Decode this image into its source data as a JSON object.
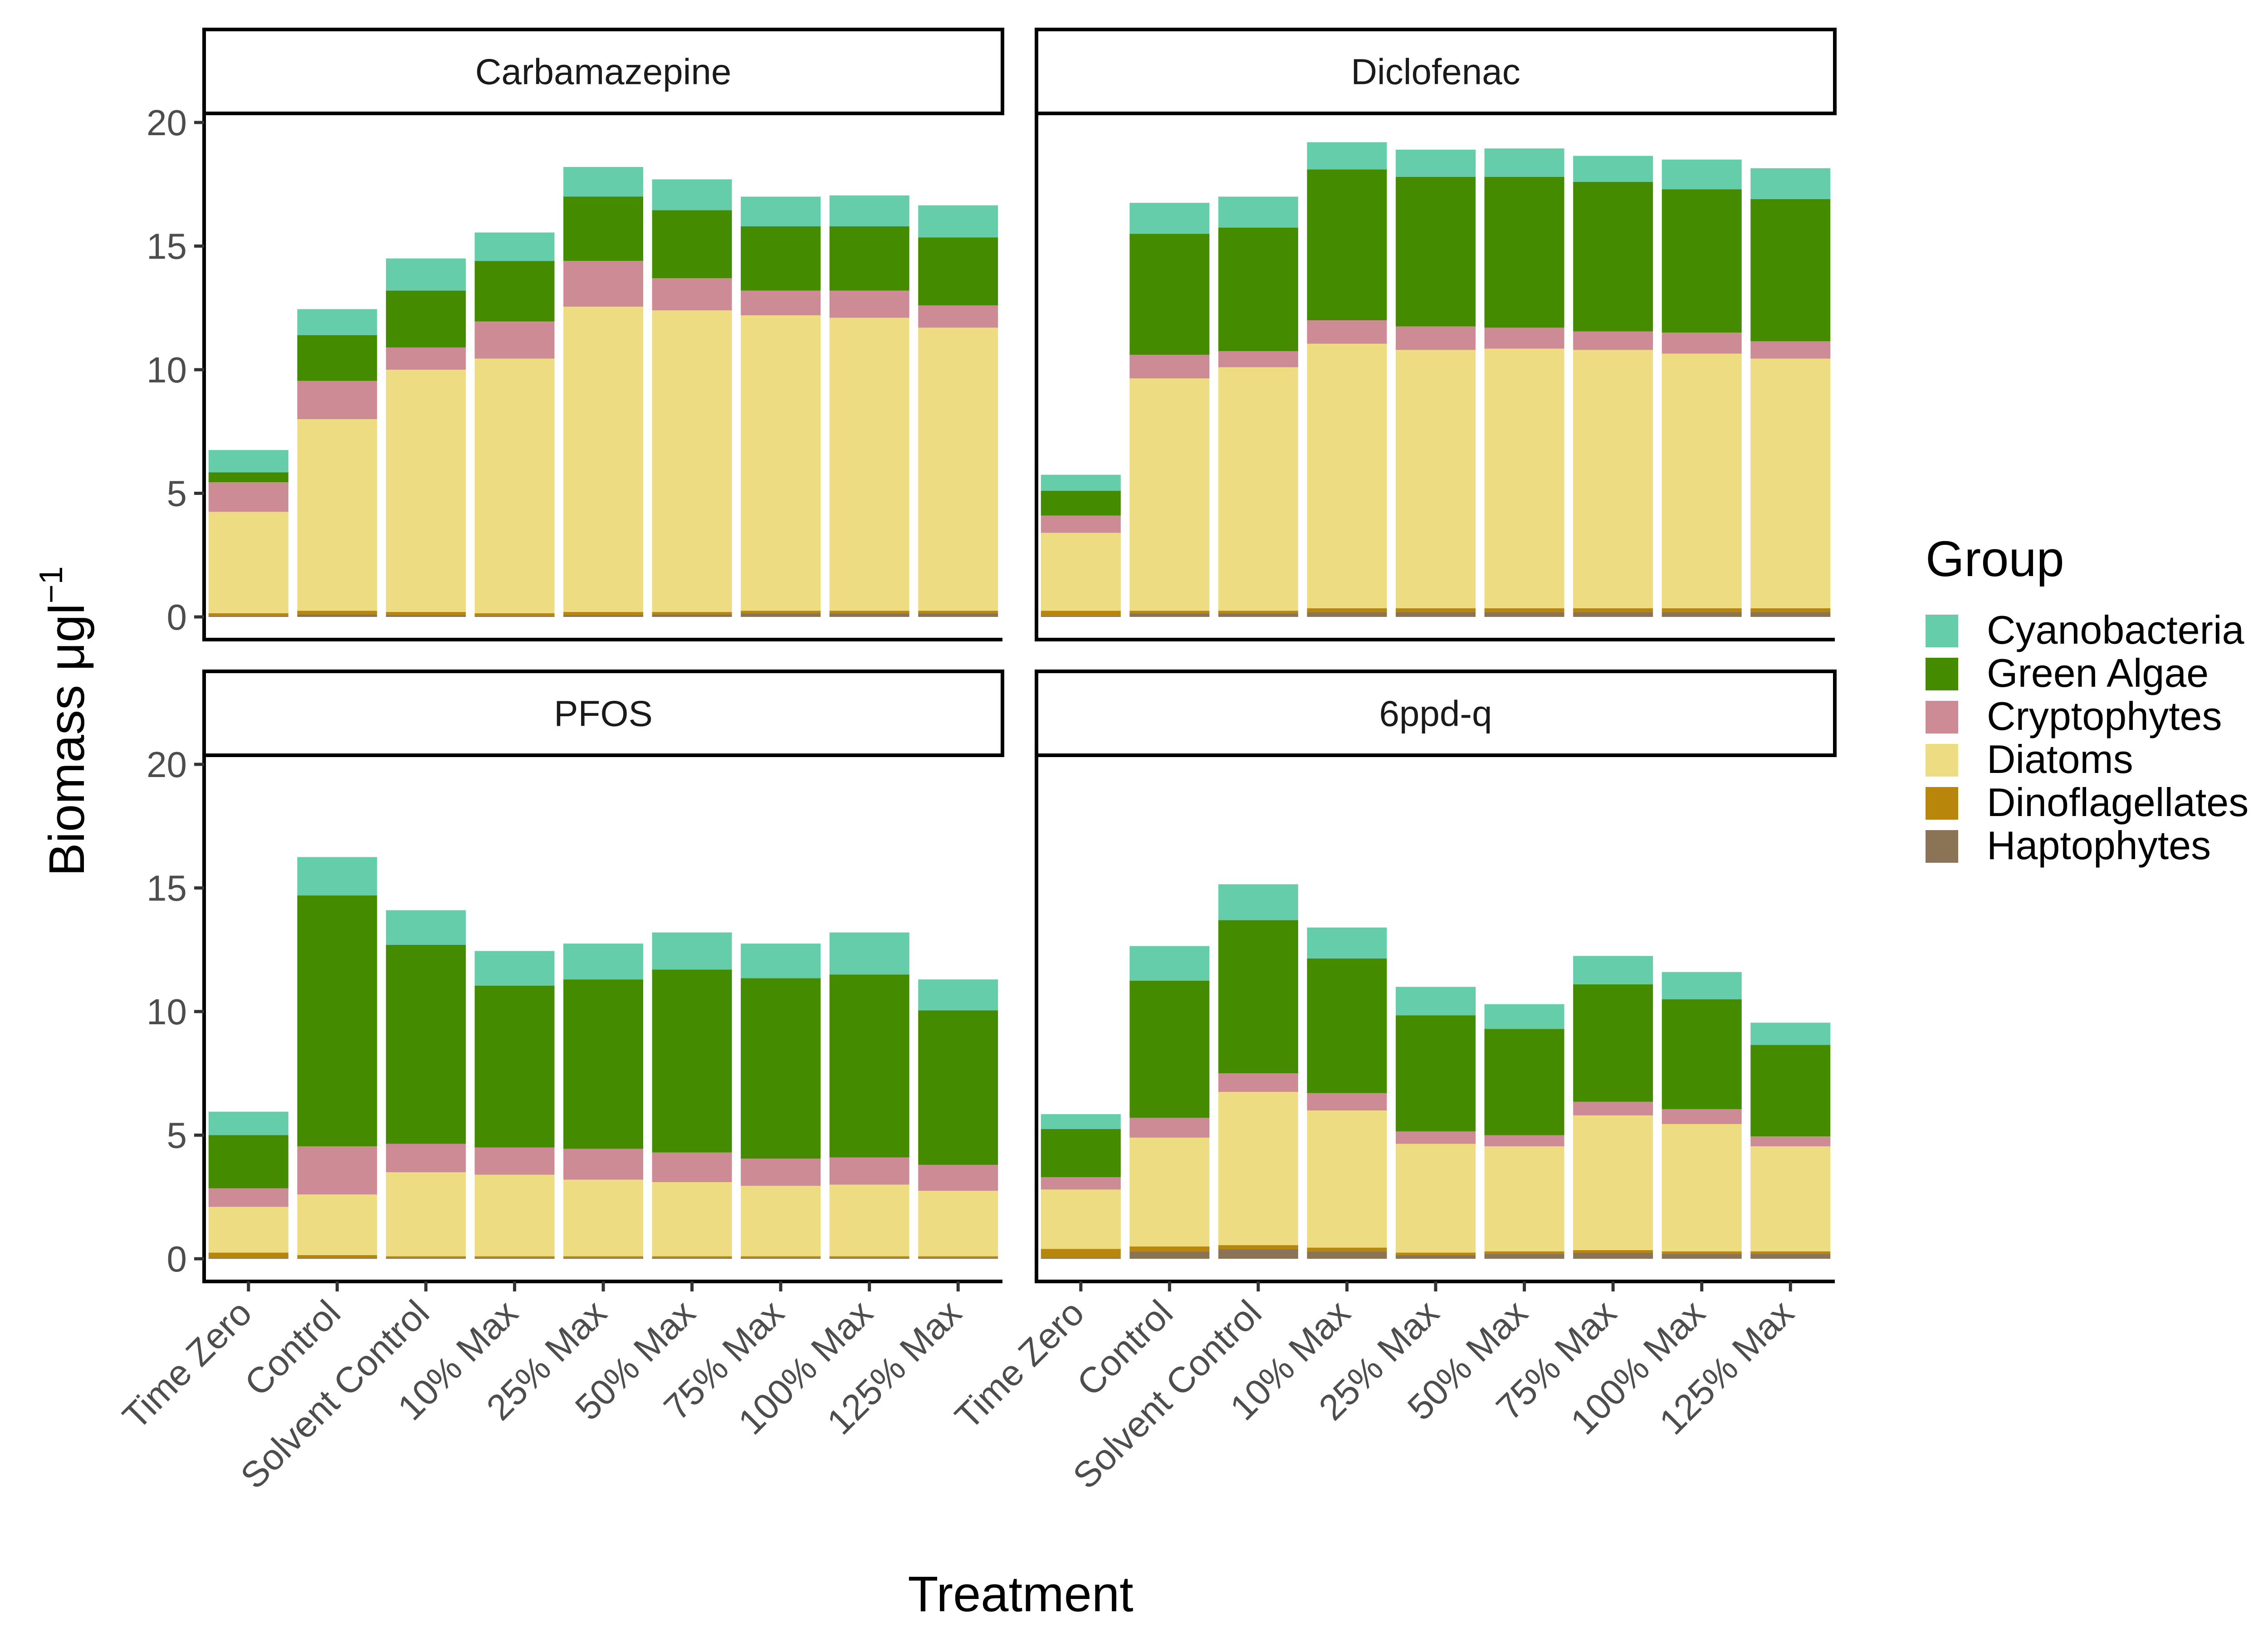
{
  "chart_data": {
    "type": "bar",
    "stacked": true,
    "xlabel": "Treatment",
    "ylabel": "Biomass μgl",
    "ylabel_superscript": "−1",
    "ylim": [
      0,
      20
    ],
    "yticks": [
      "0",
      "5",
      "10",
      "15",
      "20"
    ],
    "categories": [
      "Time Zero",
      "Control",
      "Solvent Control",
      "10% Max",
      "25% Max",
      "50% Max",
      "75% Max",
      "100% Max",
      "125% Max"
    ],
    "legend": {
      "title": "Group",
      "position": "right",
      "items": [
        {
          "name": "Cyanobacteria",
          "color": "#66cdaa"
        },
        {
          "name": "Green Algae",
          "color": "#458b00"
        },
        {
          "name": "Cryptophytes",
          "color": "#cd8c95"
        },
        {
          "name": "Diatoms",
          "color": "#eedc82"
        },
        {
          "name": "Dinoflagellates",
          "color": "#b8860b"
        },
        {
          "name": "Haptophytes",
          "color": "#8b7355"
        }
      ]
    },
    "stack_order": [
      "Haptophytes",
      "Dinoflagellates",
      "Diatoms",
      "Cryptophytes",
      "Green Algae",
      "Cyanobacteria"
    ],
    "panels": [
      {
        "title": "Carbamazepine",
        "series": [
          {
            "name": "Haptophytes",
            "values": [
              0.05,
              0.1,
              0.08,
              0.05,
              0.08,
              0.1,
              0.15,
              0.15,
              0.15
            ]
          },
          {
            "name": "Dinoflagellates",
            "values": [
              0.1,
              0.15,
              0.12,
              0.1,
              0.12,
              0.1,
              0.1,
              0.1,
              0.1
            ]
          },
          {
            "name": "Diatoms",
            "values": [
              4.1,
              7.75,
              9.8,
              10.3,
              12.35,
              12.2,
              11.95,
              11.85,
              11.45
            ]
          },
          {
            "name": "Cryptophytes",
            "values": [
              1.2,
              1.55,
              0.9,
              1.5,
              1.85,
              1.3,
              1.0,
              1.1,
              0.9
            ]
          },
          {
            "name": "Green Algae",
            "values": [
              0.4,
              1.85,
              2.3,
              2.45,
              2.6,
              2.75,
              2.6,
              2.6,
              2.75
            ]
          },
          {
            "name": "Cyanobacteria",
            "values": [
              0.9,
              1.05,
              1.3,
              1.15,
              1.2,
              1.25,
              1.2,
              1.25,
              1.3
            ]
          }
        ]
      },
      {
        "title": "Diclofenac",
        "series": [
          {
            "name": "Haptophytes",
            "values": [
              0.05,
              0.15,
              0.15,
              0.2,
              0.2,
              0.2,
              0.2,
              0.2,
              0.2
            ]
          },
          {
            "name": "Dinoflagellates",
            "values": [
              0.2,
              0.1,
              0.1,
              0.15,
              0.15,
              0.15,
              0.15,
              0.15,
              0.15
            ]
          },
          {
            "name": "Diatoms",
            "values": [
              3.15,
              9.4,
              9.85,
              10.7,
              10.45,
              10.5,
              10.45,
              10.3,
              10.1
            ]
          },
          {
            "name": "Cryptophytes",
            "values": [
              0.7,
              0.95,
              0.65,
              0.95,
              0.95,
              0.85,
              0.75,
              0.85,
              0.7
            ]
          },
          {
            "name": "Green Algae",
            "values": [
              1.0,
              4.9,
              5.0,
              6.1,
              6.05,
              6.1,
              6.05,
              5.8,
              5.75
            ]
          },
          {
            "name": "Cyanobacteria",
            "values": [
              0.65,
              1.25,
              1.25,
              1.1,
              1.1,
              1.15,
              1.05,
              1.2,
              1.25
            ]
          }
        ]
      },
      {
        "title": "PFOS",
        "series": [
          {
            "name": "Haptophytes",
            "values": [
              0.05,
              0.05,
              0.05,
              0.05,
              0.05,
              0.05,
              0.05,
              0.05,
              0.05
            ]
          },
          {
            "name": "Dinoflagellates",
            "values": [
              0.2,
              0.1,
              0.05,
              0.05,
              0.05,
              0.05,
              0.05,
              0.05,
              0.05
            ]
          },
          {
            "name": "Diatoms",
            "values": [
              1.85,
              2.45,
              3.4,
              3.3,
              3.1,
              3.0,
              2.85,
              2.9,
              2.65
            ]
          },
          {
            "name": "Cryptophytes",
            "values": [
              0.75,
              1.95,
              1.15,
              1.1,
              1.25,
              1.2,
              1.1,
              1.1,
              1.05
            ]
          },
          {
            "name": "Green Algae",
            "values": [
              2.15,
              10.15,
              8.05,
              6.55,
              6.85,
              7.4,
              7.3,
              7.4,
              6.25
            ]
          },
          {
            "name": "Cyanobacteria",
            "values": [
              0.95,
              1.55,
              1.4,
              1.4,
              1.45,
              1.5,
              1.4,
              1.7,
              1.25
            ]
          }
        ]
      },
      {
        "title": "6ppd-q",
        "series": [
          {
            "name": "Haptophytes",
            "values": [
              0.05,
              0.3,
              0.4,
              0.3,
              0.15,
              0.2,
              0.25,
              0.2,
              0.2
            ]
          },
          {
            "name": "Dinoflagellates",
            "values": [
              0.35,
              0.2,
              0.15,
              0.15,
              0.1,
              0.1,
              0.1,
              0.1,
              0.1
            ]
          },
          {
            "name": "Diatoms",
            "values": [
              2.4,
              4.4,
              6.2,
              5.55,
              4.4,
              4.25,
              5.45,
              5.15,
              4.25
            ]
          },
          {
            "name": "Cryptophytes",
            "values": [
              0.5,
              0.8,
              0.75,
              0.7,
              0.5,
              0.45,
              0.55,
              0.6,
              0.4
            ]
          },
          {
            "name": "Green Algae",
            "values": [
              1.95,
              5.55,
              6.2,
              5.45,
              4.7,
              4.3,
              4.75,
              4.45,
              3.7
            ]
          },
          {
            "name": "Cyanobacteria",
            "values": [
              0.6,
              1.4,
              1.45,
              1.25,
              1.15,
              1.0,
              1.15,
              1.1,
              0.9
            ]
          }
        ]
      }
    ]
  }
}
